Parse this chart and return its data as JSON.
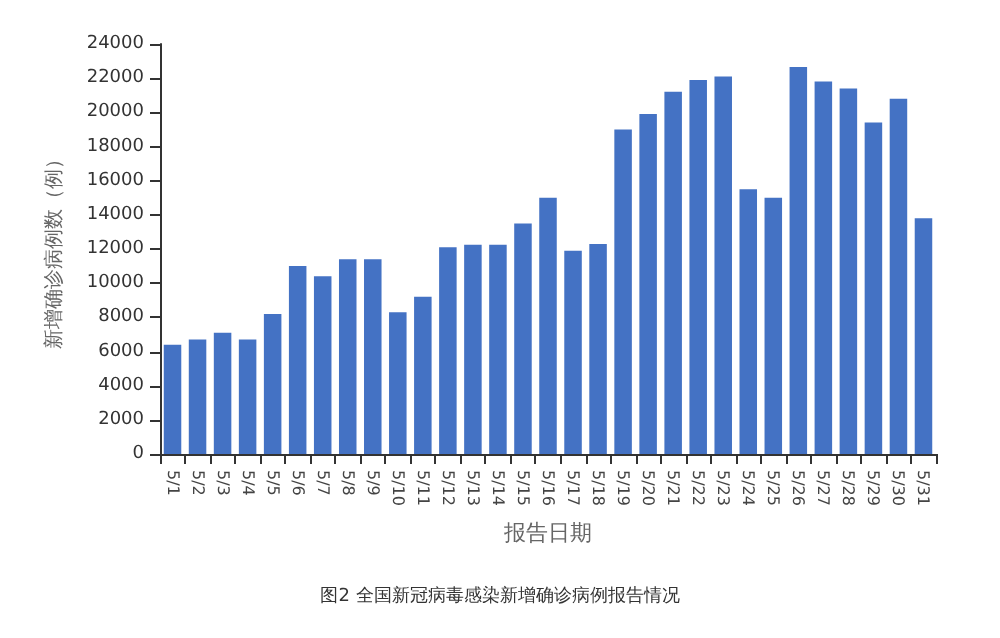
{
  "chart_data": {
    "type": "bar",
    "xlabel": "报告日期",
    "ylabel": "新增确诊病例数（例）",
    "annotations": [
      "图2 全国新冠病毒感染新增确诊病例报告情况"
    ],
    "categories": [
      "5/1",
      "5/2",
      "5/3",
      "5/4",
      "5/5",
      "5/6",
      "5/7",
      "5/8",
      "5/9",
      "5/10",
      "5/11",
      "5/12",
      "5/13",
      "5/14",
      "5/15",
      "5/16",
      "5/17",
      "5/18",
      "5/19",
      "5/20",
      "5/21",
      "5/22",
      "5/23",
      "5/24",
      "5/25",
      "5/26",
      "5/27",
      "5/28",
      "5/29",
      "5/30",
      "5/31"
    ],
    "values": [
      6400,
      6700,
      7100,
      6700,
      8200,
      11000,
      10400,
      11400,
      11400,
      8300,
      9200,
      12100,
      12250,
      12250,
      13500,
      15000,
      11900,
      12300,
      19000,
      19900,
      21200,
      21900,
      22100,
      15500,
      15000,
      22650,
      21800,
      21400,
      19400,
      20800,
      13800
    ],
    "color": "#4472c4",
    "ylim": [
      0,
      24000
    ],
    "yticks": [
      0,
      2000,
      4000,
      6000,
      8000,
      10000,
      12000,
      14000,
      16000,
      18000,
      20000,
      22000,
      24000
    ],
    "grid": false
  }
}
